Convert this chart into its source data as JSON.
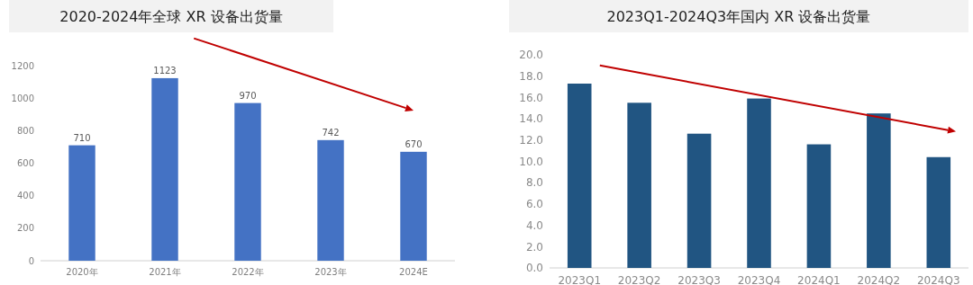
{
  "chart_data": [
    {
      "type": "bar",
      "title": "2020-2024年全球 XR 设备出货量",
      "categories": [
        "2020年",
        "2021年",
        "2022年",
        "2023年",
        "2024E"
      ],
      "values": [
        710,
        1123,
        970,
        742,
        670
      ],
      "color": "#4472c4",
      "ylim": [
        0,
        1200
      ],
      "yticks": [
        0,
        200,
        400,
        600,
        800,
        1000,
        1200
      ],
      "data_labels": true
    },
    {
      "type": "bar",
      "title": "2023Q1-2024Q3年国内 XR 设备出货量",
      "categories": [
        "2023Q1",
        "2023Q2",
        "2023Q3",
        "2023Q4",
        "2024Q1",
        "2024Q2",
        "2024Q3"
      ],
      "values": [
        17.3,
        15.5,
        12.6,
        15.9,
        11.6,
        14.5,
        10.4
      ],
      "color": "#215582",
      "ylim": [
        0,
        20
      ],
      "yticks": [
        {
          "value": 0,
          "label": "0.0"
        },
        {
          "value": 2,
          "label": "2.0"
        },
        {
          "value": 4,
          "label": "4.0"
        },
        {
          "value": 6,
          "label": "6.0"
        },
        {
          "value": 8,
          "label": "8.0"
        },
        {
          "value": 10,
          "label": "10.0"
        },
        {
          "value": 12,
          "label": "12.0"
        },
        {
          "value": 14,
          "label": "14.0"
        },
        {
          "value": 16,
          "label": "16.0"
        },
        {
          "value": 18,
          "label": "18.0"
        },
        {
          "value": 20,
          "label": "20.0"
        }
      ]
    }
  ]
}
